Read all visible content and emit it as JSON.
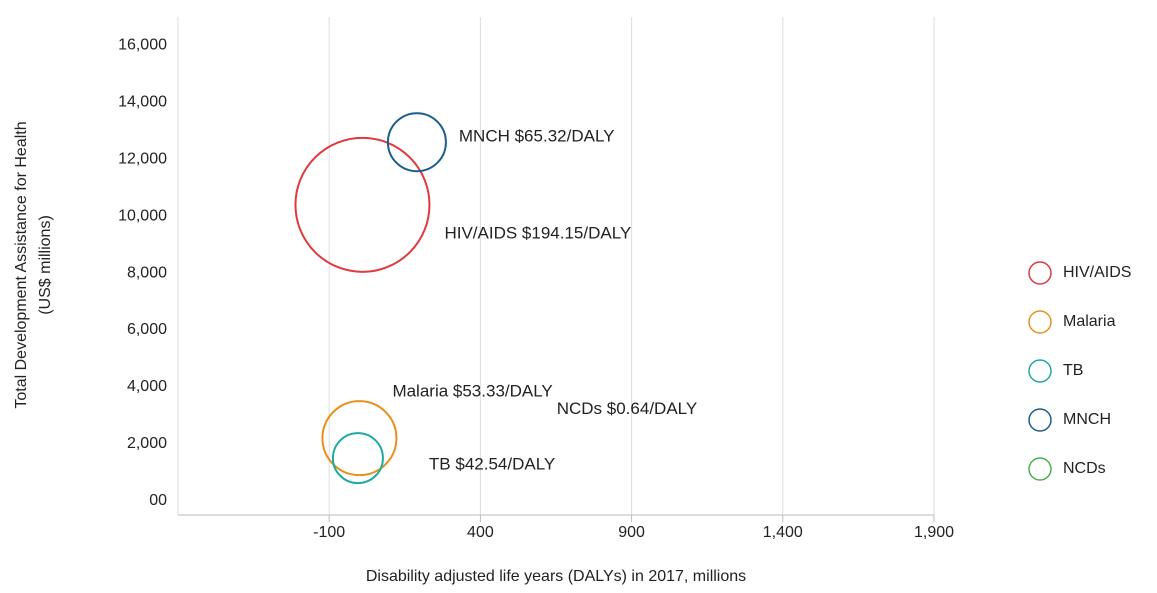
{
  "chart_data": {
    "type": "bubble",
    "x_label": "Disability adjusted life years (DALYs) in 2017, millions",
    "y_label": [
      "Total Development Assistance for Health",
      "(US$ millions)"
    ],
    "xlim": [
      -600,
      1900
    ],
    "xticks": [
      -100,
      400,
      900,
      {
        "value": 1400,
        "label": "1,400"
      },
      {
        "value": 1900,
        "label": "1,900"
      }
    ],
    "ylim": [
      -500,
      17000
    ],
    "yticks": [
      {
        "value": 0,
        "label": "00"
      },
      {
        "value": 2000,
        "label": "2,000"
      },
      {
        "value": 4000,
        "label": "4,000"
      },
      {
        "value": 6000,
        "label": "6,000"
      },
      {
        "value": 8000,
        "label": "8,000"
      },
      {
        "value": 10000,
        "label": "10,000"
      },
      {
        "value": 12000,
        "label": "12,000"
      },
      {
        "value": 14000,
        "label": "14,000"
      },
      {
        "value": 16000,
        "label": "16,000"
      }
    ],
    "grid": true,
    "legend": "right",
    "series": [
      {
        "name": "HIV/AIDS",
        "color": "#e0393e",
        "x": [
          10
        ],
        "y": [
          10400
        ],
        "size": [
          67
        ],
        "label": "HIV/AIDS $194.15/DALY"
      },
      {
        "name": "Malaria",
        "color": "#e8901c",
        "x": [
          0
        ],
        "y": [
          2200
        ],
        "size": [
          37
        ],
        "label": "Malaria $53.33/DALY"
      },
      {
        "name": "TB",
        "color": "#1fa9a4",
        "x": [
          -5
        ],
        "y": [
          1500
        ],
        "size": [
          25
        ],
        "label": "TB $42.54/DALY"
      },
      {
        "name": "MNCH",
        "color": "#1b5e8c",
        "x": [
          190
        ],
        "y": [
          12600
        ],
        "size": [
          29
        ],
        "label": "MNCH $65.32/DALY"
      },
      {
        "name": "NCDs",
        "color": "#4caf50",
        "x": [
          1150
        ],
        "y": [
          3200
        ],
        "size": [
          0
        ],
        "label": "NCDs $0.64/DALY"
      }
    ]
  }
}
